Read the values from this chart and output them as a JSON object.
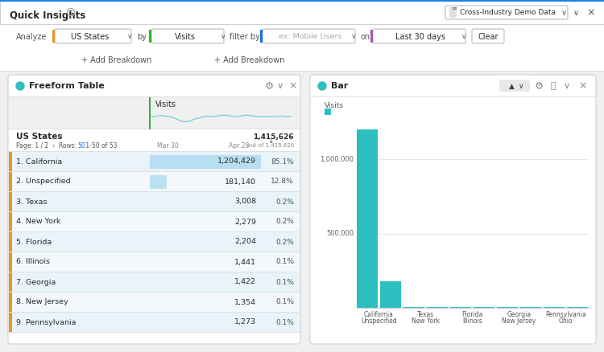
{
  "title": "Quick Insights",
  "dataset": "Cross-Industry Demo Data",
  "analyze_value": "US States",
  "by_value": "Visits",
  "filter_value": "ex: Mobile Users",
  "on_value": "Last 30 days",
  "clear_label": "Clear",
  "table_rows": [
    {
      "rank": "1.",
      "state": "California",
      "value": "1,204,429",
      "pct": "85.1%"
    },
    {
      "rank": "2.",
      "state": "Unspecified",
      "value": "181,140",
      "pct": "12.8%"
    },
    {
      "rank": "3.",
      "state": "Texas",
      "value": "3,008",
      "pct": "0.2%"
    },
    {
      "rank": "4.",
      "state": "New York",
      "value": "2,279",
      "pct": "0.2%"
    },
    {
      "rank": "5.",
      "state": "Florida",
      "value": "2,204",
      "pct": "0.2%"
    },
    {
      "rank": "6.",
      "state": "Illinois",
      "value": "1,441",
      "pct": "0.1%"
    },
    {
      "rank": "7.",
      "state": "Georgia",
      "value": "1,422",
      "pct": "0.1%"
    },
    {
      "rank": "8.",
      "state": "New Jersey",
      "value": "1,354",
      "pct": "0.1%"
    },
    {
      "rank": "9.",
      "state": "Pennsylvania",
      "value": "1,273",
      "pct": "0.1%"
    }
  ],
  "bar_color": "#2DBFBF",
  "bar_values": [
    1204429,
    181140,
    3008,
    2279,
    2204,
    1441,
    1422,
    1354,
    1273,
    600
  ],
  "bar_states": [
    "California",
    "Unspecified",
    "Texas",
    "New York",
    "Florida",
    "Illinois",
    "Georgia",
    "New Jersey",
    "Pennsylvania",
    "Ohio"
  ],
  "bar_yticks": [
    0,
    500000,
    1000000
  ],
  "bar_ytick_labels": [
    "",
    "500,000",
    "1,000,000"
  ],
  "bar_max": 1300000,
  "bg_color": "#f0f0f0",
  "panel_bg": "#ffffff",
  "header_bar_bg": "#ffffff",
  "header_bar_border": "#d0d0d0",
  "blue_top_border": "#1a7fe8",
  "filter_bar_bg": "#ffffff",
  "orange_accent": "#e8962a",
  "green_accent": "#2db52d",
  "blue_accent": "#1473e6",
  "purple_accent": "#9B59B6",
  "teal_color": "#2DBFBF",
  "panel_border": "#d0d0d0",
  "row_even": "#e8f3fa",
  "row_odd": "#f2f8fc",
  "table_header_bg": "#f0f0f0",
  "divider_color": "#e0e0e0",
  "orange_left": "#e8962a",
  "sparkline_color": "#7ad4d4",
  "grid_color": "#e8e8e8",
  "x_label_pairs": [
    [
      "California",
      "Unspecified"
    ],
    [
      "Texas",
      "New York"
    ],
    [
      "Florida",
      "Illinois"
    ],
    [
      "Georgia",
      "New Jersey"
    ],
    [
      "Pennsylvania",
      "Ohio"
    ]
  ]
}
